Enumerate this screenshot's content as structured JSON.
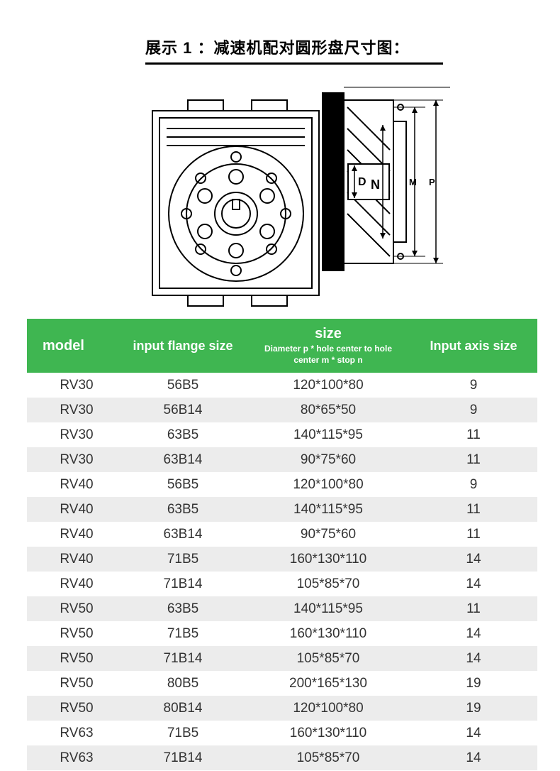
{
  "title": "展示 1 ：减速机配对圆形盘尺寸图：",
  "diagram_labels": {
    "D": "D",
    "N": "N",
    "M": "M",
    "P": "P"
  },
  "colors": {
    "header_bg": "#3fb651",
    "header_text": "#ffffff",
    "row_odd": "#ffffff",
    "row_even": "#ececec",
    "text": "#333333",
    "black": "#000000"
  },
  "table": {
    "columns": [
      {
        "label": "model"
      },
      {
        "label": "input flange size"
      },
      {
        "label": "size",
        "sub": "Diameter p * hole center to hole center m * stop n"
      },
      {
        "label": "Input axis size"
      }
    ],
    "rows": [
      [
        "RV30",
        "56B5",
        "120*100*80",
        "9"
      ],
      [
        "RV30",
        "56B14",
        "80*65*50",
        "9"
      ],
      [
        "RV30",
        "63B5",
        "140*115*95",
        "11"
      ],
      [
        "RV30",
        "63B14",
        "90*75*60",
        "11"
      ],
      [
        "RV40",
        "56B5",
        "120*100*80",
        "9"
      ],
      [
        "RV40",
        "63B5",
        "140*115*95",
        "11"
      ],
      [
        "RV40",
        "63B14",
        "90*75*60",
        "11"
      ],
      [
        "RV40",
        "71B5",
        "160*130*110",
        "14"
      ],
      [
        "RV40",
        "71B14",
        "105*85*70",
        "14"
      ],
      [
        "RV50",
        "63B5",
        "140*115*95",
        "11"
      ],
      [
        "RV50",
        "71B5",
        "160*130*110",
        "14"
      ],
      [
        "RV50",
        "71B14",
        "105*85*70",
        "14"
      ],
      [
        "RV50",
        "80B5",
        "200*165*130",
        "19"
      ],
      [
        "RV50",
        "80B14",
        "120*100*80",
        "19"
      ],
      [
        "RV63",
        "71B5",
        "160*130*110",
        "14"
      ],
      [
        "RV63",
        "71B14",
        "105*85*70",
        "14"
      ]
    ]
  }
}
